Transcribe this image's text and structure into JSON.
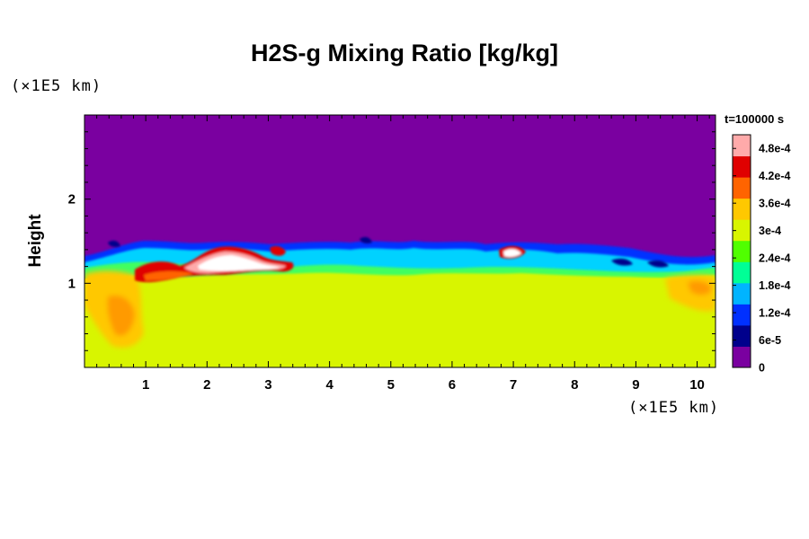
{
  "chart_data": {
    "type": "heatmap",
    "title": "H2S-g Mixing Ratio [kg/kg]",
    "xlabel": "",
    "ylabel": "Height",
    "x_unit": "(×1E5 km)",
    "y_unit": "(×1E5 km)",
    "time_label": "t=100000 s",
    "xlim": [
      0,
      10.3
    ],
    "ylim": [
      0,
      3.0
    ],
    "x_ticks": [
      "1",
      "2",
      "3",
      "4",
      "5",
      "6",
      "7",
      "8",
      "9",
      "10"
    ],
    "y_ticks": [
      "1",
      "2"
    ],
    "colorbar": {
      "range": [
        0,
        0.00051
      ],
      "ticks": [
        "0",
        "6e-5",
        "1.2e-4",
        "1.8e-4",
        "2.4e-4",
        "3e-4",
        "3.6e-4",
        "4.2e-4",
        "4.8e-4"
      ],
      "colors": [
        "#7a00a0",
        "#00008c",
        "#0030ff",
        "#00b4ff",
        "#00ff96",
        "#50ff00",
        "#d8f500",
        "#ffc800",
        "#ff6400",
        "#e00000",
        "#ffaaaa"
      ]
    },
    "field_summary": {
      "upper_region_value": 0,
      "lower_region_value": 0.00034,
      "interface_height": [
        1.2,
        1.5
      ],
      "high_value_regions": [
        {
          "x": [
            0.8,
            3.3
          ],
          "y": [
            1.0,
            1.45
          ],
          "value": 0.0005
        },
        {
          "x": [
            6.7,
            7.0
          ],
          "y": [
            1.3,
            1.4
          ],
          "value": 0.0005
        }
      ]
    }
  }
}
